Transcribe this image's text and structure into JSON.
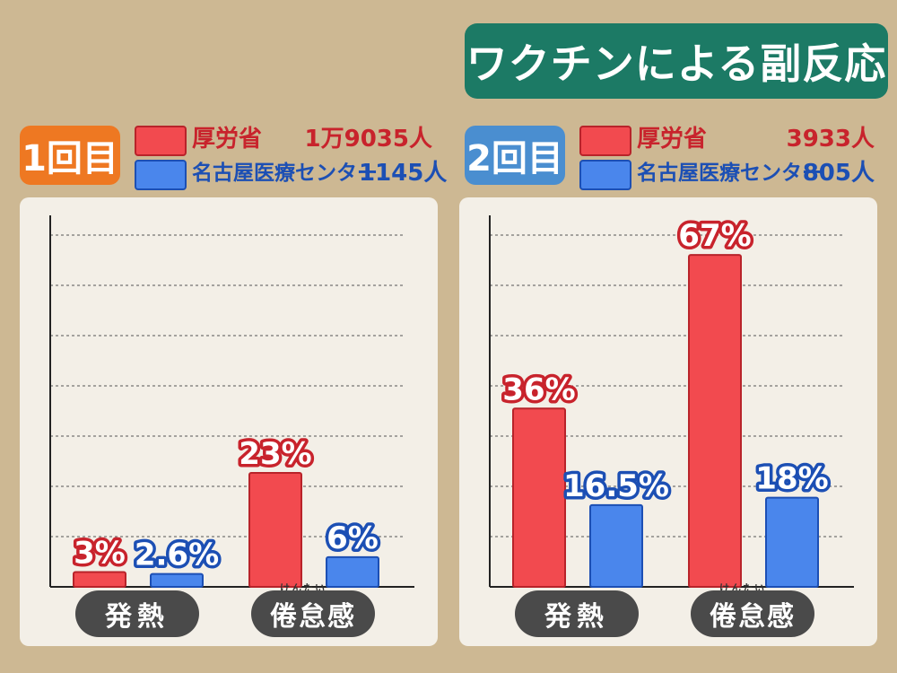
{
  "title": "ワクチンによる副反応",
  "colors": {
    "mhlw": "#f24a4f",
    "nagoya": "#4a86ec",
    "mhlw_text": "#c8232c",
    "nagoya_text": "#1c4fb4",
    "badge1": "#ee7822",
    "badge2": "#4a8ed0"
  },
  "panels": [
    {
      "badge": "1回目",
      "legend": [
        {
          "label": "厚労省",
          "count": "1万9035人"
        },
        {
          "label": "名古屋医療センター",
          "count": "1145人"
        }
      ],
      "categories": [
        {
          "label": "発熱",
          "ruby": ""
        },
        {
          "label": "倦怠感",
          "ruby": "けんたい"
        }
      ]
    },
    {
      "badge": "2回目",
      "legend": [
        {
          "label": "厚労省",
          "count": "3933人"
        },
        {
          "label": "名古屋医療センター",
          "count": "805人"
        }
      ],
      "categories": [
        {
          "label": "発熱",
          "ruby": ""
        },
        {
          "label": "倦怠感",
          "ruby": "けんたい"
        }
      ]
    }
  ],
  "chart_data": [
    {
      "type": "bar",
      "title": "1回目",
      "categories": [
        "発熱",
        "倦怠感"
      ],
      "series": [
        {
          "name": "厚労省",
          "values": [
            3,
            23
          ],
          "labels": [
            "3%",
            "23%"
          ]
        },
        {
          "name": "名古屋医療センター",
          "values": [
            2.6,
            6
          ],
          "labels": [
            "2.6%",
            "6%"
          ]
        }
      ],
      "ylim": [
        0,
        75
      ],
      "grid": true,
      "legend": "top"
    },
    {
      "type": "bar",
      "title": "2回目",
      "categories": [
        "発熱",
        "倦怠感"
      ],
      "series": [
        {
          "name": "厚労省",
          "values": [
            36,
            67
          ],
          "labels": [
            "36%",
            "67%"
          ]
        },
        {
          "name": "名古屋医療センター",
          "values": [
            16.5,
            18
          ],
          "labels": [
            "16.5%",
            "18%"
          ]
        }
      ],
      "ylim": [
        0,
        75
      ],
      "grid": true,
      "legend": "top"
    }
  ]
}
